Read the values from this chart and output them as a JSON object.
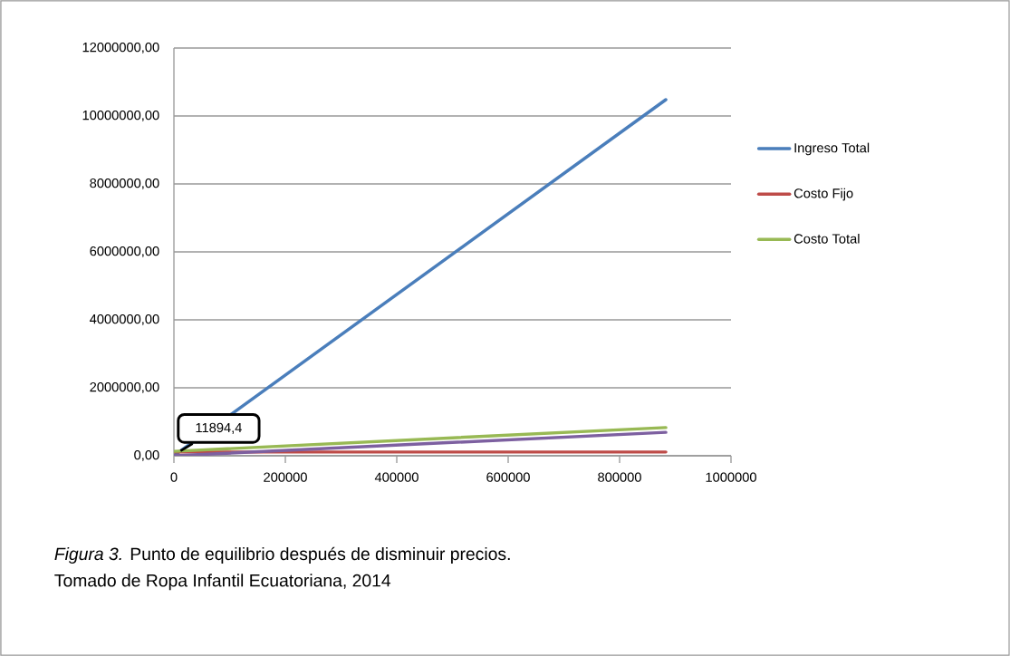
{
  "chart_data": {
    "type": "line",
    "xlim": [
      0,
      1000000
    ],
    "ylim": [
      0,
      12000000
    ],
    "xticks": [
      0,
      200000,
      400000,
      600000,
      800000,
      1000000
    ],
    "yticks": [
      {
        "value": 0,
        "label": "0,00"
      },
      {
        "value": 2000000,
        "label": "2000000,00"
      },
      {
        "value": 4000000,
        "label": "4000000,00"
      },
      {
        "value": 6000000,
        "label": "6000000,00"
      },
      {
        "value": 8000000,
        "label": "8000000,00"
      },
      {
        "value": 10000000,
        "label": "10000000,00"
      },
      {
        "value": 12000000,
        "label": "12000000,00"
      }
    ],
    "x": [
      0,
      883000
    ],
    "grid": "y",
    "legend": "right",
    "marker": "none",
    "line_style": "solid",
    "series": [
      {
        "name": "Ingreso Total",
        "color": "#4a7ebb",
        "values": [
          0,
          10480000
        ]
      },
      {
        "name": "Costo Fijo",
        "color": "#be4b48",
        "values": [
          110000,
          110000
        ]
      },
      {
        "name": "Costo Total",
        "color": "#98b954",
        "values": [
          130000,
          830000
        ]
      },
      {
        "color": "#7d60a0",
        "values": [
          0,
          690000
        ]
      }
    ],
    "annotations": [
      {
        "text": "11894,4",
        "x": 11894.4,
        "y": 141000
      },
      "*Figura 3.* Punto de equilibrio después de disminuir precios.",
      "Tomado de Ropa Infantil Ecuatoriana, 2014"
    ]
  }
}
